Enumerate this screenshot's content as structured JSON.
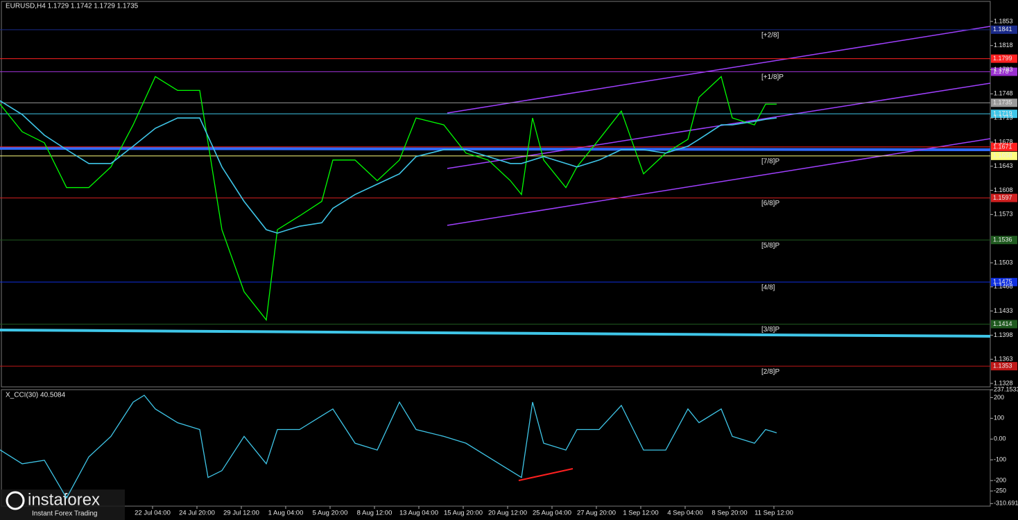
{
  "chart_data": [
    {
      "type": "line",
      "title": "EURUSD,H4  1.1729 1.1742 1.1729 1.1735",
      "x": [
        0,
        8,
        16,
        24,
        32,
        40,
        48,
        56,
        64,
        72,
        80,
        88,
        96,
        100,
        108,
        116,
        120,
        128,
        136,
        144,
        150,
        160,
        168,
        176,
        184,
        188,
        192,
        196,
        204,
        208,
        216,
        224,
        232,
        240,
        248,
        252,
        260,
        264,
        272,
        276,
        280
      ],
      "xlim": [
        0,
        357
      ],
      "xticks": [
        {
          "value": 55,
          "label": "22 Jul 04:00"
        },
        {
          "value": 71,
          "label": "24 Jul 20:00"
        },
        {
          "value": 87,
          "label": "29 Jul 12:00"
        },
        {
          "value": 103,
          "label": "1 Aug 04:00"
        },
        {
          "value": 119,
          "label": "5 Aug 20:00"
        },
        {
          "value": 135,
          "label": "8 Aug 12:00"
        },
        {
          "value": 151,
          "label": "13 Aug 04:00"
        },
        {
          "value": 167,
          "label": "15 Aug 20:00"
        },
        {
          "value": 183,
          "label": "20 Aug 12:00"
        },
        {
          "value": 199,
          "label": "25 Aug 04:00"
        },
        {
          "value": 215,
          "label": "27 Aug 20:00"
        },
        {
          "value": 231,
          "label": "1 Sep 12:00"
        },
        {
          "value": 247,
          "label": "4 Sep 04:00"
        },
        {
          "value": 263,
          "label": "8 Sep 20:00"
        },
        {
          "value": 279,
          "label": "11 Sep 12:00"
        }
      ],
      "ylim": [
        1.1323,
        1.187
      ],
      "yticks": [
        1.1853,
        1.1818,
        1.1783,
        1.1748,
        1.1713,
        1.1678,
        1.1643,
        1.1608,
        1.1573,
        1.1503,
        1.1468,
        1.1433,
        1.1398,
        1.1363,
        1.1328
      ],
      "series": [
        {
          "color": "#00ff00",
          "values": [
            1.1733,
            1.1693,
            1.1677,
            1.1612,
            1.1612,
            1.1642,
            1.1703,
            1.1773,
            1.1753,
            1.1753,
            1.1551,
            1.1461,
            1.142,
            1.1551,
            1.1571,
            1.1592,
            1.1652,
            1.1652,
            1.1622,
            1.1652,
            1.1713,
            1.1703,
            1.1662,
            1.1652,
            1.1622,
            1.1602,
            1.1713,
            1.1652,
            1.1612,
            1.1642,
            1.1682,
            1.1723,
            1.1632,
            1.1662,
            1.1682,
            1.1743,
            1.1773,
            1.1713,
            1.1703,
            1.1733,
            1.1733
          ]
        },
        {
          "color": "#3fc6e8",
          "values": [
            1.1738,
            1.1718,
            1.1688,
            1.1667,
            1.1647,
            1.1647,
            1.1672,
            1.1698,
            1.1713,
            1.1713,
            1.1642,
            1.1592,
            1.1551,
            1.1546,
            1.1556,
            1.1561,
            1.1582,
            1.1602,
            1.1617,
            1.1632,
            1.1657,
            1.1667,
            1.1667,
            1.1657,
            1.1647,
            1.1647,
            1.1652,
            1.1657,
            1.1647,
            1.1642,
            1.1652,
            1.1667,
            1.1667,
            1.1662,
            1.1672,
            1.1682,
            1.1703,
            1.1703,
            1.1708,
            1.1711,
            1.1713
          ]
        }
      ],
      "levels": [
        {
          "value": 1.1841,
          "tag": "[+2/8]",
          "color": "#1a2a8a"
        },
        {
          "value": 1.1799,
          "color": "#ff2020"
        },
        {
          "value": 1.178,
          "tag": "[+1/8]P",
          "color": "#9a30d0"
        },
        {
          "value": 1.1735,
          "color": "#9a9a9a"
        },
        {
          "value": 1.1719,
          "color": "#3fc6e8"
        },
        {
          "value": 1.1671,
          "color": "#ff2020"
        },
        {
          "value": 1.1658,
          "tag": "[7/8]P",
          "color": "#ffff80"
        },
        {
          "value": 1.1597,
          "tag": "[6/8]P",
          "color": "#d02020"
        },
        {
          "value": 1.1536,
          "tag": "[5/8]P",
          "color": "#1f5a1f"
        },
        {
          "value": 1.1475,
          "tag": "[4/8]",
          "color": "#1030e0"
        },
        {
          "value": 1.1414,
          "tag": "[3/8]P",
          "color": "#1f5a1f"
        },
        {
          "value": 1.1353,
          "tag": "[2/8]P",
          "color": "#c01818"
        }
      ]
    },
    {
      "type": "line",
      "title": "X_CCI(30) 40.5084",
      "x": [
        0,
        8,
        16,
        24,
        32,
        40,
        48,
        52,
        56,
        64,
        72,
        75,
        80,
        88,
        96,
        100,
        108,
        116,
        120,
        128,
        136,
        144,
        150,
        160,
        168,
        176,
        184,
        188,
        192,
        196,
        204,
        208,
        216,
        224,
        232,
        240,
        248,
        252,
        260,
        264,
        272,
        276,
        280
      ],
      "xlim": [
        0,
        357
      ],
      "ylim": [
        -323,
        238
      ],
      "yticks": [
        237.1533,
        200,
        100,
        {
          "value": 0,
          "label": "0.00"
        },
        -100,
        -200,
        -250,
        -310.6915
      ],
      "series": [
        {
          "color": "#3fc6e8",
          "values": [
            -52,
            -119,
            -102,
            -284,
            -86,
            13,
            178,
            211,
            145,
            79,
            46,
            -185,
            -152,
            13,
            -119,
            46,
            46,
            112,
            145,
            -20,
            -53,
            178,
            46,
            13,
            -20,
            -86,
            -152,
            -185,
            178,
            -20,
            -53,
            46,
            46,
            162,
            -53,
            -53,
            145,
            79,
            145,
            13,
            -20,
            46,
            30
          ]
        }
      ]
    }
  ],
  "logo": {
    "name": "instaforex",
    "tagline": "Instant Forex Trading"
  }
}
